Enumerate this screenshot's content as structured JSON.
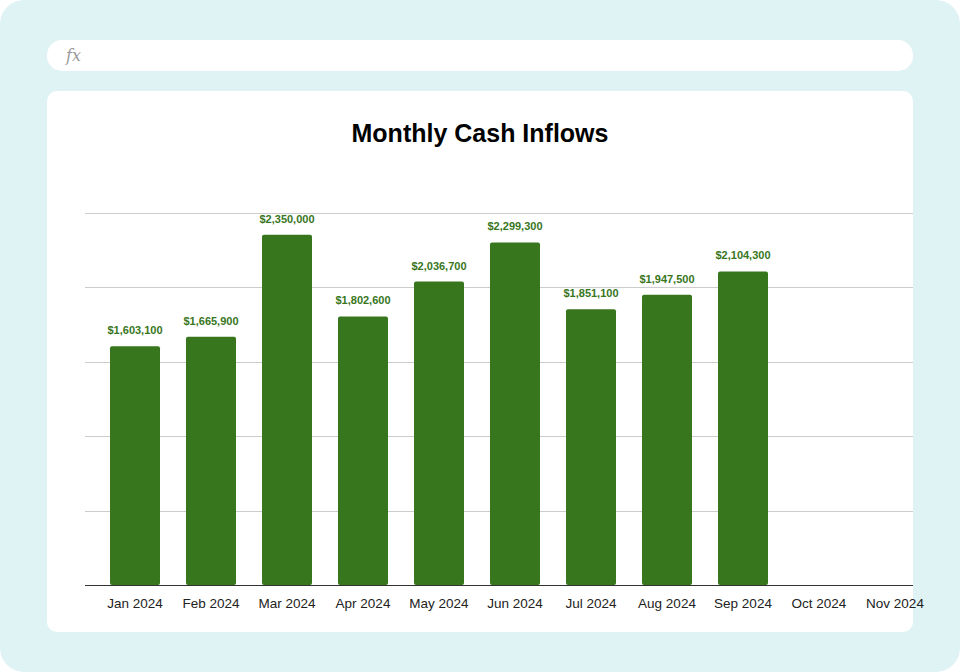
{
  "chart_data": {
    "type": "bar",
    "title": "Monthly Cash Inflows",
    "formula_label": "fx",
    "categories": [
      "Jan 2024",
      "Feb 2024",
      "Mar 2024",
      "Apr 2024",
      "May 2024",
      "Jun 2024",
      "Jul 2024",
      "Aug 2024",
      "Sep 2024",
      "Oct 2024",
      "Nov 2024"
    ],
    "values": [
      1603100,
      1665900,
      2350000,
      1802600,
      2036700,
      2299300,
      1851100,
      1947500,
      2104300,
      null,
      null
    ],
    "value_labels": [
      "$1,603,100",
      "$1,665,900",
      "$2,350,000",
      "$1,802,600",
      "$2,036,700",
      "$2,299,300",
      "$1,851,100",
      "$1,947,500",
      "$2,104,300",
      null,
      null
    ],
    "color": "#38761d",
    "ylim": [
      0,
      2500000
    ],
    "yticks": [
      0,
      500000,
      1000000,
      1500000,
      2000000,
      2500000
    ],
    "grid": true,
    "data_labels": true,
    "tick_labels": "x"
  }
}
